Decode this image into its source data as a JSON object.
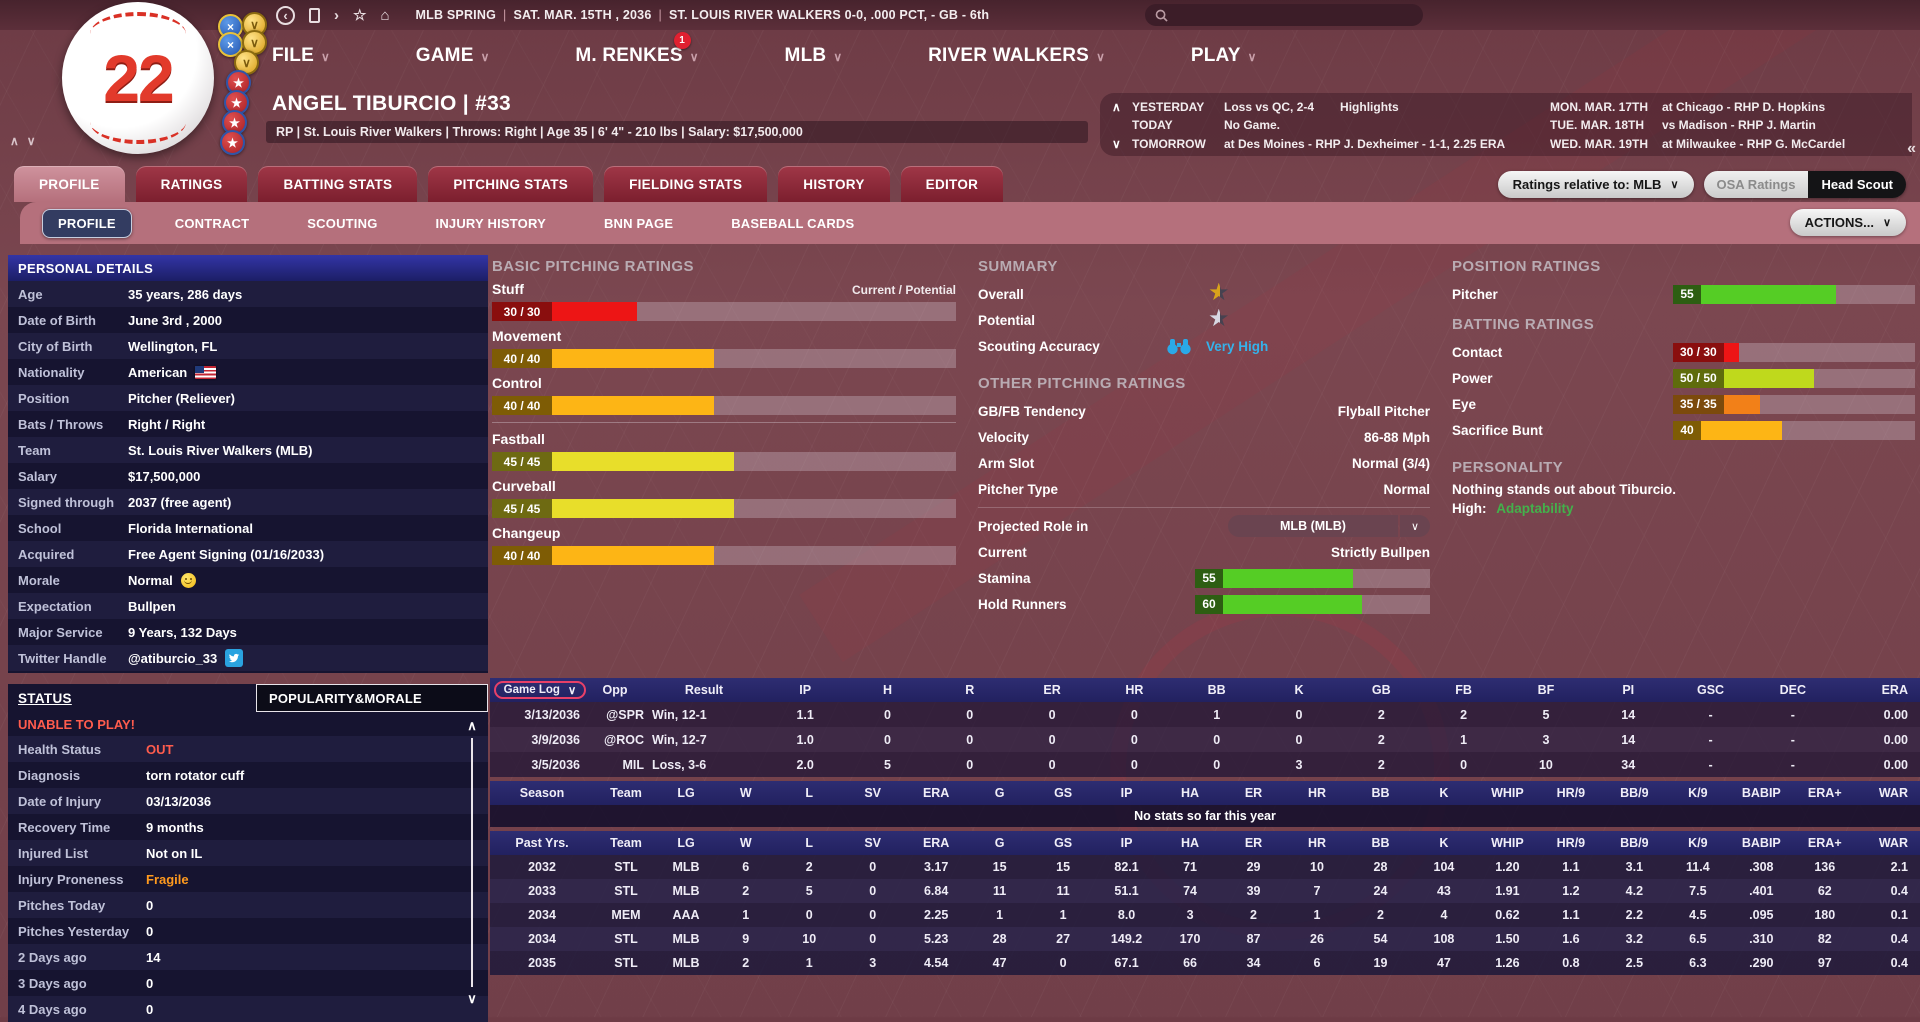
{
  "topbar": {
    "context": "MLB SPRING",
    "date": "SAT. MAR. 15TH , 2036",
    "team_record": "ST. LOUIS RIVER WALKERS  0-0, .000 PCT, - GB - 6th",
    "search_placeholder": ""
  },
  "menu": {
    "items": [
      "FILE",
      "GAME",
      "M. RENKES",
      "MLB",
      "RIVER WALKERS",
      "PLAY"
    ],
    "notification_count": "1"
  },
  "logo": {
    "number": "22"
  },
  "badges": [
    "medal-blue",
    "medal-gold",
    "medal-blue",
    "medal-gold",
    "medal-gold",
    "star",
    "star",
    "star",
    "star"
  ],
  "player": {
    "name": "ANGEL TIBURCIO  |  #33",
    "info": "RP | St. Louis River Walkers  |  Throws: Right  |  Age 35  |  6' 4\" - 210 lbs  |  Salary: $17,500,000"
  },
  "schedule": {
    "rows": [
      {
        "arrow": "∧",
        "day": "YESTERDAY",
        "result": "Loss vs QC, 2-4",
        "link": "Highlights",
        "date2": "MON. MAR. 17TH",
        "game2": "at Chicago - RHP D. Hopkins"
      },
      {
        "arrow": "",
        "day": "TODAY",
        "result": "No Game.",
        "link": "",
        "date2": "TUE. MAR. 18TH",
        "game2": "vs Madison - RHP J. Martin"
      },
      {
        "arrow": "∨",
        "day": "TOMORROW",
        "result": "at Des Moines - RHP J. Dexheimer - 1-1, 2.25 ERA",
        "link": "",
        "date2": "WED. MAR. 19TH",
        "game2": "at Milwaukee - RHP G. McCardel"
      }
    ],
    "collapse": "«"
  },
  "tabs": {
    "main": [
      "PROFILE",
      "RATINGS",
      "BATTING STATS",
      "PITCHING STATS",
      "FIELDING STATS",
      "HISTORY",
      "EDITOR"
    ],
    "active_main": "PROFILE",
    "sub": [
      "PROFILE",
      "CONTRACT",
      "SCOUTING",
      "INJURY HISTORY",
      "BNN PAGE",
      "BASEBALL CARDS"
    ],
    "active_sub": "PROFILE"
  },
  "controls": {
    "ratings_relative": "Ratings relative to: MLB",
    "osa": "OSA Ratings",
    "head_scout": "Head Scout",
    "actions": "ACTIONS..."
  },
  "personal_details": {
    "title": "PERSONAL DETAILS",
    "rows": [
      {
        "label": "Age",
        "value": "35 years, 286 days"
      },
      {
        "label": "Date of Birth",
        "value": "June 3rd , 2000"
      },
      {
        "label": "City of Birth",
        "value": "Wellington, FL"
      },
      {
        "label": "Nationality",
        "value": "American",
        "icon": "us-flag"
      },
      {
        "label": "Position",
        "value": "Pitcher (Reliever)"
      },
      {
        "label": "Bats / Throws",
        "value": "Right / Right"
      },
      {
        "label": "Team",
        "value": "St. Louis River Walkers (MLB)"
      },
      {
        "label": "Salary",
        "value": "$17,500,000"
      },
      {
        "label": "Signed through",
        "value": "2037 (free agent)"
      },
      {
        "label": "School",
        "value": "Florida International"
      },
      {
        "label": "Acquired",
        "value": "Free Agent Signing (01/16/2033)"
      },
      {
        "label": "Morale",
        "value": "Normal",
        "icon": "smiley"
      },
      {
        "label": "Expectation",
        "value": "Bullpen"
      },
      {
        "label": "Major Service",
        "value": "9 Years, 132 Days"
      },
      {
        "label": "Twitter Handle",
        "value": "@atiburcio_33",
        "icon": "twitter"
      }
    ]
  },
  "status": {
    "title": "STATUS",
    "popularity_tab": "POPULARITY&MORALE",
    "alert": "UNABLE TO PLAY!",
    "alert_color": "#ff5c4d",
    "rows": [
      {
        "label": "Health Status",
        "value": "OUT",
        "color": "#ff5c4d"
      },
      {
        "label": "Diagnosis",
        "value": "torn rotator cuff"
      },
      {
        "label": "Date of Injury",
        "value": "03/13/2036"
      },
      {
        "label": "Recovery Time",
        "value": "9 months"
      },
      {
        "label": "Injured List",
        "value": "Not on IL"
      },
      {
        "label": "Injury Proneness",
        "value": "Fragile",
        "color": "#ff9a1e"
      },
      {
        "label": "Pitches Today",
        "value": "0"
      },
      {
        "label": "Pitches Yesterday",
        "value": "0"
      },
      {
        "label": "2 Days ago",
        "value": "14"
      },
      {
        "label": "3 Days ago",
        "value": "0"
      },
      {
        "label": "4 Days ago",
        "value": "0"
      }
    ]
  },
  "basic_ratings": {
    "title": "BASIC PITCHING RATINGS",
    "scale_note": "Current / Potential",
    "bars": [
      {
        "label": "Stuff",
        "value": "30 / 30",
        "pct": 21,
        "fill": "#ed1515",
        "box": "#8a0e0e"
      },
      {
        "label": "Movement",
        "value": "40 / 40",
        "pct": 40,
        "fill": "#fdb515",
        "box": "#7e5c05"
      },
      {
        "label": "Control",
        "value": "40 / 40",
        "pct": 40,
        "fill": "#fdb515",
        "box": "#7e5c05"
      },
      {
        "label": "Fastball",
        "value": "45 / 45",
        "pct": 45,
        "fill": "#e8de2a",
        "box": "#6e6a12"
      },
      {
        "label": "Curveball",
        "value": "45 / 45",
        "pct": 45,
        "fill": "#e8de2a",
        "box": "#6e6a12"
      },
      {
        "label": "Changeup",
        "value": "40 / 40",
        "pct": 40,
        "fill": "#fdb515",
        "box": "#7e5c05"
      }
    ],
    "divider_after": 3
  },
  "summary": {
    "title": "SUMMARY",
    "overall_label": "Overall",
    "potential_label": "Potential",
    "scouting_label": "Scouting Accuracy",
    "scouting_value": "Very High",
    "scouting_color": "#35b2ea",
    "overall_star": "half-gold",
    "potential_star": "half-silver"
  },
  "other_ratings": {
    "title": "OTHER PITCHING RATINGS",
    "rows": [
      {
        "type": "text",
        "label": "GB/FB Tendency",
        "value": "Flyball Pitcher"
      },
      {
        "type": "text",
        "label": "Velocity",
        "value": "86-88 Mph"
      },
      {
        "type": "text",
        "label": "Arm Slot",
        "value": "Normal (3/4)"
      },
      {
        "type": "text",
        "label": "Pitcher Type",
        "value": "Normal"
      },
      {
        "type": "drop",
        "label": "Projected Role in",
        "value": "MLB (MLB)"
      },
      {
        "type": "text",
        "label": "Current",
        "value": "Strictly Bullpen"
      },
      {
        "type": "bar",
        "label": "Stamina",
        "value": "55",
        "pct": 63,
        "fill": "#55cd25",
        "box": "#2d5e12"
      },
      {
        "type": "bar",
        "label": "Hold Runners",
        "value": "60",
        "pct": 67,
        "fill": "#55cd25",
        "box": "#2d5e12"
      }
    ]
  },
  "position_ratings": {
    "title": "POSITION RATINGS",
    "bars": [
      {
        "label": "Pitcher",
        "value": "55",
        "pct": 63,
        "fill": "#55cd25",
        "box": "#2d5e12"
      }
    ]
  },
  "batting_ratings": {
    "title": "BATTING RATINGS",
    "bars": [
      {
        "label": "Contact",
        "value": "30 / 30",
        "pct": 8,
        "fill": "#ed1515",
        "box": "#8a0e0e"
      },
      {
        "label": "Power",
        "value": "50 / 50",
        "pct": 47,
        "fill": "#bfd91c",
        "box": "#5f6c0c"
      },
      {
        "label": "Eye",
        "value": "35 / 35",
        "pct": 19,
        "fill": "#f28018",
        "box": "#7c4a0c"
      },
      {
        "label": "Sacrifice Bunt",
        "value": "40",
        "pct": 38,
        "fill": "#fdb515",
        "box": "#7e5c05"
      }
    ]
  },
  "personality": {
    "title": "PERSONALITY",
    "line1": "Nothing stands out about Tiburcio.",
    "high_label": "High:",
    "high_value": "Adaptability",
    "high_color": "#43b14b"
  },
  "gamelog": {
    "selector": "Game Log",
    "columns": [
      "",
      "Opp",
      "Result",
      "IP",
      "H",
      "R",
      "ER",
      "HR",
      "BB",
      "K",
      "GB",
      "FB",
      "BF",
      "PI",
      "GSC",
      "DEC",
      "ERA"
    ],
    "rows": [
      [
        "3/13/2036",
        "@SPR",
        "Win, 12-1",
        "1.1",
        "0",
        "0",
        "0",
        "0",
        "1",
        "0",
        "2",
        "2",
        "5",
        "14",
        "-",
        "-",
        "0.00"
      ],
      [
        "3/9/2036",
        "@ROC",
        "Win, 12-7",
        "1.0",
        "0",
        "0",
        "0",
        "0",
        "0",
        "0",
        "2",
        "1",
        "3",
        "14",
        "-",
        "-",
        "0.00"
      ],
      [
        "3/5/2036",
        "MIL",
        "Loss, 3-6",
        "2.0",
        "5",
        "0",
        "0",
        "0",
        "0",
        "3",
        "2",
        "0",
        "10",
        "34",
        "-",
        "-",
        "0.00"
      ]
    ]
  },
  "season_stats": {
    "season_label": "Season",
    "past_label": "Past Yrs.",
    "columns": [
      "Team",
      "LG",
      "W",
      "L",
      "SV",
      "ERA",
      "G",
      "GS",
      "IP",
      "HA",
      "ER",
      "HR",
      "BB",
      "K",
      "WHIP",
      "HR/9",
      "BB/9",
      "K/9",
      "BABIP",
      "ERA+",
      "WAR"
    ],
    "no_stats": "No stats so far this year",
    "rows": [
      [
        "2032",
        "STL",
        "MLB",
        "6",
        "2",
        "0",
        "3.17",
        "15",
        "15",
        "82.1",
        "71",
        "29",
        "10",
        "28",
        "104",
        "1.20",
        "1.1",
        "3.1",
        "11.4",
        ".308",
        "136",
        "2.1"
      ],
      [
        "2033",
        "STL",
        "MLB",
        "2",
        "5",
        "0",
        "6.84",
        "11",
        "11",
        "51.1",
        "74",
        "39",
        "7",
        "24",
        "43",
        "1.91",
        "1.2",
        "4.2",
        "7.5",
        ".401",
        "62",
        "0.4"
      ],
      [
        "2034",
        "MEM",
        "AAA",
        "1",
        "0",
        "0",
        "2.25",
        "1",
        "1",
        "8.0",
        "3",
        "2",
        "1",
        "2",
        "4",
        "0.62",
        "1.1",
        "2.2",
        "4.5",
        ".095",
        "180",
        "0.1"
      ],
      [
        "2034",
        "STL",
        "MLB",
        "9",
        "10",
        "0",
        "5.23",
        "28",
        "27",
        "149.2",
        "170",
        "87",
        "26",
        "54",
        "108",
        "1.50",
        "1.6",
        "3.2",
        "6.5",
        ".310",
        "82",
        "0.4"
      ],
      [
        "2035",
        "STL",
        "MLB",
        "2",
        "1",
        "3",
        "4.54",
        "47",
        "0",
        "67.1",
        "66",
        "34",
        "6",
        "19",
        "47",
        "1.26",
        "0.8",
        "2.5",
        "6.3",
        ".290",
        "97",
        "0.4"
      ]
    ]
  },
  "misc": {
    "up": "∧",
    "down": "∨",
    "chevron": "∨",
    "back": "‹",
    "forward": "›",
    "star": "☆",
    "home": "⌂"
  }
}
